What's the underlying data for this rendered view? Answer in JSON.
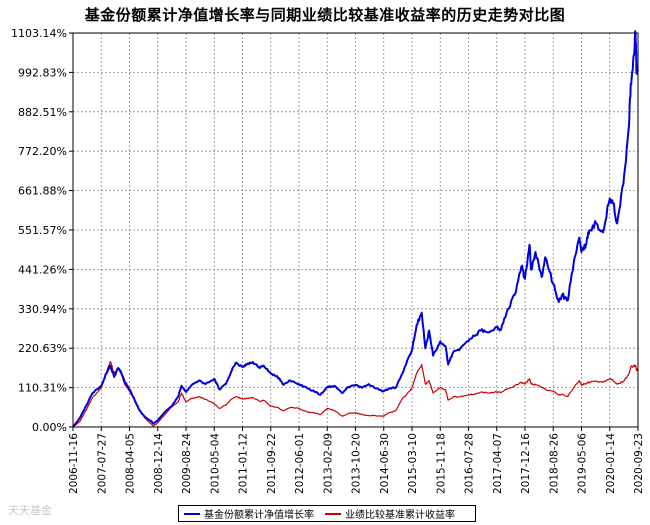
{
  "chart_data": {
    "type": "line",
    "title": "基金份额累计净值增长率与同期业绩比较基准收益率的历史走势对比图",
    "y_tick_labels": [
      "0.00%",
      "110.31%",
      "220.63%",
      "330.94%",
      "441.26%",
      "551.57%",
      "661.88%",
      "772.20%",
      "882.51%",
      "992.83%",
      "1103.14%"
    ],
    "y_ticks": [
      0,
      110.31,
      220.63,
      330.94,
      441.26,
      551.57,
      661.88,
      772.2,
      882.51,
      992.83,
      1103.14
    ],
    "ylim": [
      0,
      1103.14
    ],
    "x_tick_labels": [
      "2006-11-16",
      "2007-07-27",
      "2008-04-05",
      "2008-12-14",
      "2009-08-24",
      "2010-05-04",
      "2011-01-12",
      "2011-09-22",
      "2012-06-01",
      "2013-02-09",
      "2013-10-20",
      "2014-06-30",
      "2015-03-10",
      "2015-11-18",
      "2016-07-28",
      "2017-04-07",
      "2017-12-16",
      "2018-08-26",
      "2019-05-06",
      "2020-01-14",
      "2020-09-23"
    ],
    "x_range": [
      "2006-11-16",
      "2020-09-23"
    ],
    "grid": true,
    "legend_position": "bottom",
    "series": [
      {
        "name": "基金份额累计净值增长率",
        "color": "#0000dd",
        "values": [
          [
            "2006-11-16",
            0
          ],
          [
            "2007-01-15",
            25
          ],
          [
            "2007-03-15",
            60
          ],
          [
            "2007-05-10",
            95
          ],
          [
            "2007-07-27",
            115
          ],
          [
            "2007-09-10",
            150
          ],
          [
            "2007-10-16",
            172
          ],
          [
            "2007-11-20",
            140
          ],
          [
            "2007-12-25",
            165
          ],
          [
            "2008-01-20",
            155
          ],
          [
            "2008-02-20",
            128
          ],
          [
            "2008-04-05",
            105
          ],
          [
            "2008-05-15",
            80
          ],
          [
            "2008-07-01",
            48
          ],
          [
            "2008-08-15",
            30
          ],
          [
            "2008-10-10",
            18
          ],
          [
            "2008-11-05",
            10
          ],
          [
            "2008-12-14",
            18
          ],
          [
            "2009-02-15",
            42
          ],
          [
            "2009-04-15",
            58
          ],
          [
            "2009-06-15",
            85
          ],
          [
            "2009-07-15",
            115
          ],
          [
            "2009-08-24",
            98
          ],
          [
            "2009-10-15",
            118
          ],
          [
            "2009-12-15",
            130
          ],
          [
            "2010-02-15",
            120
          ],
          [
            "2010-05-04",
            135
          ],
          [
            "2010-06-20",
            105
          ],
          [
            "2010-08-15",
            120
          ],
          [
            "2010-10-15",
            165
          ],
          [
            "2010-11-20",
            180
          ],
          [
            "2011-01-12",
            168
          ],
          [
            "2011-02-20",
            175
          ],
          [
            "2011-04-15",
            182
          ],
          [
            "2011-06-15",
            165
          ],
          [
            "2011-07-20",
            172
          ],
          [
            "2011-09-22",
            150
          ],
          [
            "2011-11-20",
            142
          ],
          [
            "2012-01-15",
            118
          ],
          [
            "2012-03-15",
            130
          ],
          [
            "2012-06-01",
            120
          ],
          [
            "2012-08-15",
            108
          ],
          [
            "2012-10-15",
            100
          ],
          [
            "2012-12-10",
            90
          ],
          [
            "2013-02-09",
            112
          ],
          [
            "2013-04-15",
            115
          ],
          [
            "2013-06-25",
            95
          ],
          [
            "2013-08-15",
            112
          ],
          [
            "2013-10-20",
            118
          ],
          [
            "2013-12-15",
            110
          ],
          [
            "2014-02-15",
            120
          ],
          [
            "2014-04-15",
            108
          ],
          [
            "2014-06-30",
            100
          ],
          [
            "2014-08-15",
            108
          ],
          [
            "2014-10-15",
            110
          ],
          [
            "2014-12-15",
            150
          ],
          [
            "2015-02-15",
            200
          ],
          [
            "2015-03-10",
            215
          ],
          [
            "2015-04-20",
            285
          ],
          [
            "2015-06-05",
            320
          ],
          [
            "2015-07-08",
            220
          ],
          [
            "2015-08-10",
            270
          ],
          [
            "2015-09-15",
            200
          ],
          [
            "2015-11-18",
            240
          ],
          [
            "2016-01-05",
            225
          ],
          [
            "2016-01-28",
            175
          ],
          [
            "2016-03-15",
            210
          ],
          [
            "2016-05-15",
            220
          ],
          [
            "2016-07-28",
            240
          ],
          [
            "2016-09-15",
            255
          ],
          [
            "2016-11-15",
            270
          ],
          [
            "2017-01-15",
            265
          ],
          [
            "2017-04-07",
            280
          ],
          [
            "2017-05-15",
            272
          ],
          [
            "2017-07-15",
            330
          ],
          [
            "2017-09-15",
            370
          ],
          [
            "2017-11-15",
            450
          ],
          [
            "2017-12-16",
            415
          ],
          [
            "2018-01-25",
            510
          ],
          [
            "2018-02-10",
            440
          ],
          [
            "2018-03-20",
            490
          ],
          [
            "2018-05-15",
            420
          ],
          [
            "2018-06-15",
            475
          ],
          [
            "2018-08-26",
            400
          ],
          [
            "2018-10-15",
            350
          ],
          [
            "2018-11-15",
            370
          ],
          [
            "2019-01-03",
            355
          ],
          [
            "2019-02-25",
            460
          ],
          [
            "2019-04-15",
            530
          ],
          [
            "2019-05-06",
            490
          ],
          [
            "2019-06-15",
            510
          ],
          [
            "2019-07-15",
            550
          ],
          [
            "2019-09-15",
            570
          ],
          [
            "2019-11-15",
            545
          ],
          [
            "2020-01-14",
            640
          ],
          [
            "2020-02-15",
            625
          ],
          [
            "2020-03-20",
            570
          ],
          [
            "2020-05-15",
            680
          ],
          [
            "2020-06-30",
            830
          ],
          [
            "2020-07-20",
            960
          ],
          [
            "2020-08-15",
            1040
          ],
          [
            "2020-09-01",
            1100
          ],
          [
            "2020-09-10",
            990
          ],
          [
            "2020-09-23",
            1000
          ]
        ]
      },
      {
        "name": "业绩比较基准累计收益率",
        "color": "#cc0000",
        "values": [
          [
            "2006-11-16",
            0
          ],
          [
            "2007-01-15",
            15
          ],
          [
            "2007-03-15",
            48
          ],
          [
            "2007-05-10",
            82
          ],
          [
            "2007-07-27",
            110
          ],
          [
            "2007-09-10",
            150
          ],
          [
            "2007-10-16",
            183
          ],
          [
            "2007-11-20",
            150
          ],
          [
            "2007-12-25",
            165
          ],
          [
            "2008-01-20",
            150
          ],
          [
            "2008-02-20",
            120
          ],
          [
            "2008-04-05",
            100
          ],
          [
            "2008-05-15",
            78
          ],
          [
            "2008-07-01",
            45
          ],
          [
            "2008-08-15",
            28
          ],
          [
            "2008-10-10",
            10
          ],
          [
            "2008-11-05",
            3
          ],
          [
            "2008-12-14",
            12
          ],
          [
            "2009-02-15",
            35
          ],
          [
            "2009-04-15",
            55
          ],
          [
            "2009-06-15",
            70
          ],
          [
            "2009-07-15",
            95
          ],
          [
            "2009-08-24",
            70
          ],
          [
            "2009-10-15",
            80
          ],
          [
            "2009-12-15",
            85
          ],
          [
            "2010-02-15",
            78
          ],
          [
            "2010-05-04",
            65
          ],
          [
            "2010-06-20",
            52
          ],
          [
            "2010-08-15",
            62
          ],
          [
            "2010-10-15",
            80
          ],
          [
            "2010-11-20",
            85
          ],
          [
            "2011-01-12",
            78
          ],
          [
            "2011-02-20",
            80
          ],
          [
            "2011-04-15",
            82
          ],
          [
            "2011-06-15",
            72
          ],
          [
            "2011-07-20",
            75
          ],
          [
            "2011-09-22",
            58
          ],
          [
            "2011-11-20",
            55
          ],
          [
            "2012-01-15",
            45
          ],
          [
            "2012-03-15",
            55
          ],
          [
            "2012-06-01",
            52
          ],
          [
            "2012-08-15",
            42
          ],
          [
            "2012-10-15",
            40
          ],
          [
            "2012-12-10",
            35
          ],
          [
            "2013-02-09",
            52
          ],
          [
            "2013-04-15",
            46
          ],
          [
            "2013-06-25",
            30
          ],
          [
            "2013-08-15",
            38
          ],
          [
            "2013-10-20",
            40
          ],
          [
            "2013-12-15",
            35
          ],
          [
            "2014-02-15",
            32
          ],
          [
            "2014-04-15",
            32
          ],
          [
            "2014-06-30",
            30
          ],
          [
            "2014-08-15",
            40
          ],
          [
            "2014-10-15",
            45
          ],
          [
            "2014-12-15",
            80
          ],
          [
            "2015-02-15",
            100
          ],
          [
            "2015-03-10",
            110
          ],
          [
            "2015-04-20",
            150
          ],
          [
            "2015-06-05",
            175
          ],
          [
            "2015-07-08",
            120
          ],
          [
            "2015-08-10",
            130
          ],
          [
            "2015-09-15",
            95
          ],
          [
            "2015-11-18",
            110
          ],
          [
            "2016-01-05",
            105
          ],
          [
            "2016-01-28",
            75
          ],
          [
            "2016-03-15",
            85
          ],
          [
            "2016-05-15",
            85
          ],
          [
            "2016-07-28",
            90
          ],
          [
            "2016-09-15",
            92
          ],
          [
            "2016-11-15",
            98
          ],
          [
            "2017-01-15",
            95
          ],
          [
            "2017-04-07",
            98
          ],
          [
            "2017-05-15",
            96
          ],
          [
            "2017-07-15",
            108
          ],
          [
            "2017-09-15",
            115
          ],
          [
            "2017-11-15",
            125
          ],
          [
            "2017-12-16",
            120
          ],
          [
            "2018-01-25",
            135
          ],
          [
            "2018-02-10",
            120
          ],
          [
            "2018-03-20",
            118
          ],
          [
            "2018-05-15",
            112
          ],
          [
            "2018-06-15",
            105
          ],
          [
            "2018-08-26",
            100
          ],
          [
            "2018-10-15",
            90
          ],
          [
            "2018-11-15",
            92
          ],
          [
            "2019-01-03",
            85
          ],
          [
            "2019-02-25",
            110
          ],
          [
            "2019-04-15",
            130
          ],
          [
            "2019-05-06",
            118
          ],
          [
            "2019-06-15",
            122
          ],
          [
            "2019-07-15",
            125
          ],
          [
            "2019-09-15",
            128
          ],
          [
            "2019-11-15",
            125
          ],
          [
            "2020-01-14",
            135
          ],
          [
            "2020-02-15",
            130
          ],
          [
            "2020-03-20",
            120
          ],
          [
            "2020-05-15",
            128
          ],
          [
            "2020-06-30",
            145
          ],
          [
            "2020-07-20",
            168
          ],
          [
            "2020-08-15",
            170
          ],
          [
            "2020-09-01",
            172
          ],
          [
            "2020-09-10",
            160
          ],
          [
            "2020-09-23",
            162
          ]
        ]
      }
    ]
  },
  "watermark": "天天基金"
}
